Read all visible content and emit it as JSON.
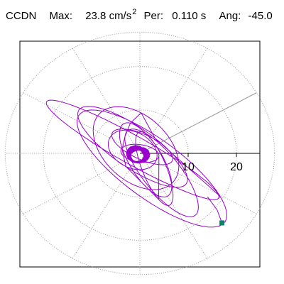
{
  "header": {
    "station": "CCDN",
    "max_label": "Max:",
    "max_value": "23.8 cm/s",
    "max_exponent": "2",
    "per_label": "Per:",
    "per_value": "0.110 s",
    "ang_label": "Ang:",
    "ang_value": "-45.0"
  },
  "chart_data": {
    "type": "polar_trajectory",
    "title": "",
    "xlabel": "",
    "ylabel": "",
    "radial_tick_labels": [
      "10",
      "20"
    ],
    "radial_ticks": [
      10,
      20
    ],
    "rmax": 30,
    "grid": true,
    "grid_style": "dotted",
    "angular_spokes_deg": [
      0,
      30,
      60,
      90,
      120,
      150,
      180,
      210,
      240,
      270,
      300,
      330
    ],
    "highlight_spoke_deg": 30,
    "colors": {
      "trace": "#9900cc",
      "axis": "#000000",
      "grid": "#999999",
      "spoke_highlight": "#999999",
      "peak_marker": "#008866"
    },
    "peak_marker": {
      "x": 17,
      "y": -16
    },
    "series": [
      {
        "loops": [
          {
            "a": 21,
            "b": 3.2,
            "rotation_deg": -32,
            "center": [
              -1.5,
              0.8
            ],
            "turns": 1
          },
          {
            "a": 19.5,
            "b": 6.5,
            "rotation_deg": -40,
            "center": [
              2.5,
              -3.5
            ],
            "turns": 1
          },
          {
            "a": 14,
            "b": 4.5,
            "rotation_deg": -38,
            "center": [
              -1.5,
              1.5
            ],
            "turns": 1
          },
          {
            "a": 11,
            "b": 7,
            "rotation_deg": -50,
            "center": [
              -0.8,
              1.2
            ],
            "turns": 1
          },
          {
            "a": 9.5,
            "b": 3.5,
            "rotation_deg": -62,
            "center": [
              1.2,
              -1.5
            ],
            "turns": 1
          },
          {
            "a": 12,
            "b": 4,
            "rotation_deg": -55,
            "center": [
              4.5,
              -4.5
            ],
            "turns": 1
          },
          {
            "a": 7,
            "b": 2.8,
            "rotation_deg": -28,
            "center": [
              0.5,
              1.5
            ],
            "turns": 1
          },
          {
            "a": 5.5,
            "b": 4,
            "rotation_deg": -35,
            "center": [
              -1.5,
              0.8
            ],
            "turns": 1
          },
          {
            "a": 9,
            "b": 2.5,
            "rotation_deg": -70,
            "center": [
              3.0,
              -3.5
            ],
            "turns": 1
          },
          {
            "a": 4,
            "b": 2,
            "rotation_deg": -10,
            "center": [
              0.0,
              0.0
            ],
            "turns": 1
          }
        ],
        "final_segment": [
          [
            14,
            -10
          ],
          [
            16,
            -13
          ],
          [
            17,
            -16
          ]
        ],
        "core_radius": 2.5
      }
    ]
  }
}
